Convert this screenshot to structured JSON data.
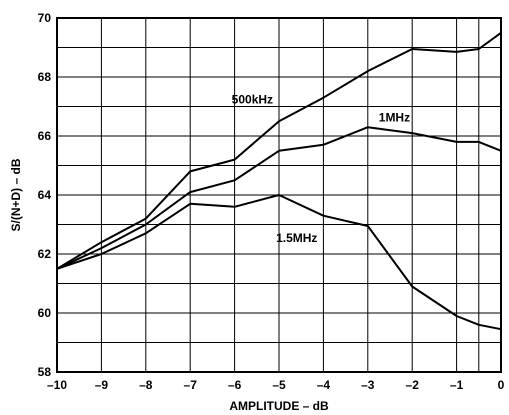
{
  "chart_data": {
    "type": "line",
    "xlabel": "AMPLITUDE – dB",
    "ylabel": "S/(N+D) – dB",
    "xlim": [
      -10,
      0
    ],
    "ylim": [
      58,
      70
    ],
    "xticks": [
      -10,
      -9,
      -8,
      -7,
      -6,
      -5,
      -4,
      -3,
      -2,
      -1,
      0
    ],
    "yticks": [
      58,
      60,
      62,
      64,
      66,
      68,
      70
    ],
    "xtick_labels": [
      "–10",
      "–9",
      "–8",
      "–7",
      "–6",
      "–5",
      "–4",
      "–3",
      "–2",
      "–1",
      "0"
    ],
    "ytick_labels": [
      "58",
      "60",
      "62",
      "64",
      "66",
      "68",
      "70"
    ],
    "grid": true,
    "line_color": "#000000",
    "series": [
      {
        "name": "500kHz",
        "x": [
          -10,
          -9,
          -8,
          -7,
          -6,
          -5,
          -4,
          -3,
          -2,
          -1,
          -0.5,
          0
        ],
        "y": [
          61.5,
          62.4,
          63.2,
          64.8,
          65.2,
          66.5,
          67.3,
          68.2,
          68.95,
          68.85,
          68.95,
          69.5
        ]
      },
      {
        "name": "1MHz",
        "x": [
          -10,
          -9,
          -8,
          -7,
          -6,
          -5,
          -4,
          -3,
          -2,
          -1,
          -0.5,
          0
        ],
        "y": [
          61.5,
          62.2,
          63.0,
          64.1,
          64.5,
          65.5,
          65.7,
          66.3,
          66.1,
          65.8,
          65.8,
          65.5
        ]
      },
      {
        "name": "1.5MHz",
        "x": [
          -10,
          -9,
          -8,
          -7,
          -6,
          -5,
          -4,
          -3,
          -2,
          -1,
          -0.5,
          0
        ],
        "y": [
          61.5,
          62.0,
          62.7,
          63.7,
          63.6,
          64.0,
          63.3,
          62.95,
          60.9,
          59.9,
          59.6,
          59.45
        ]
      }
    ]
  }
}
